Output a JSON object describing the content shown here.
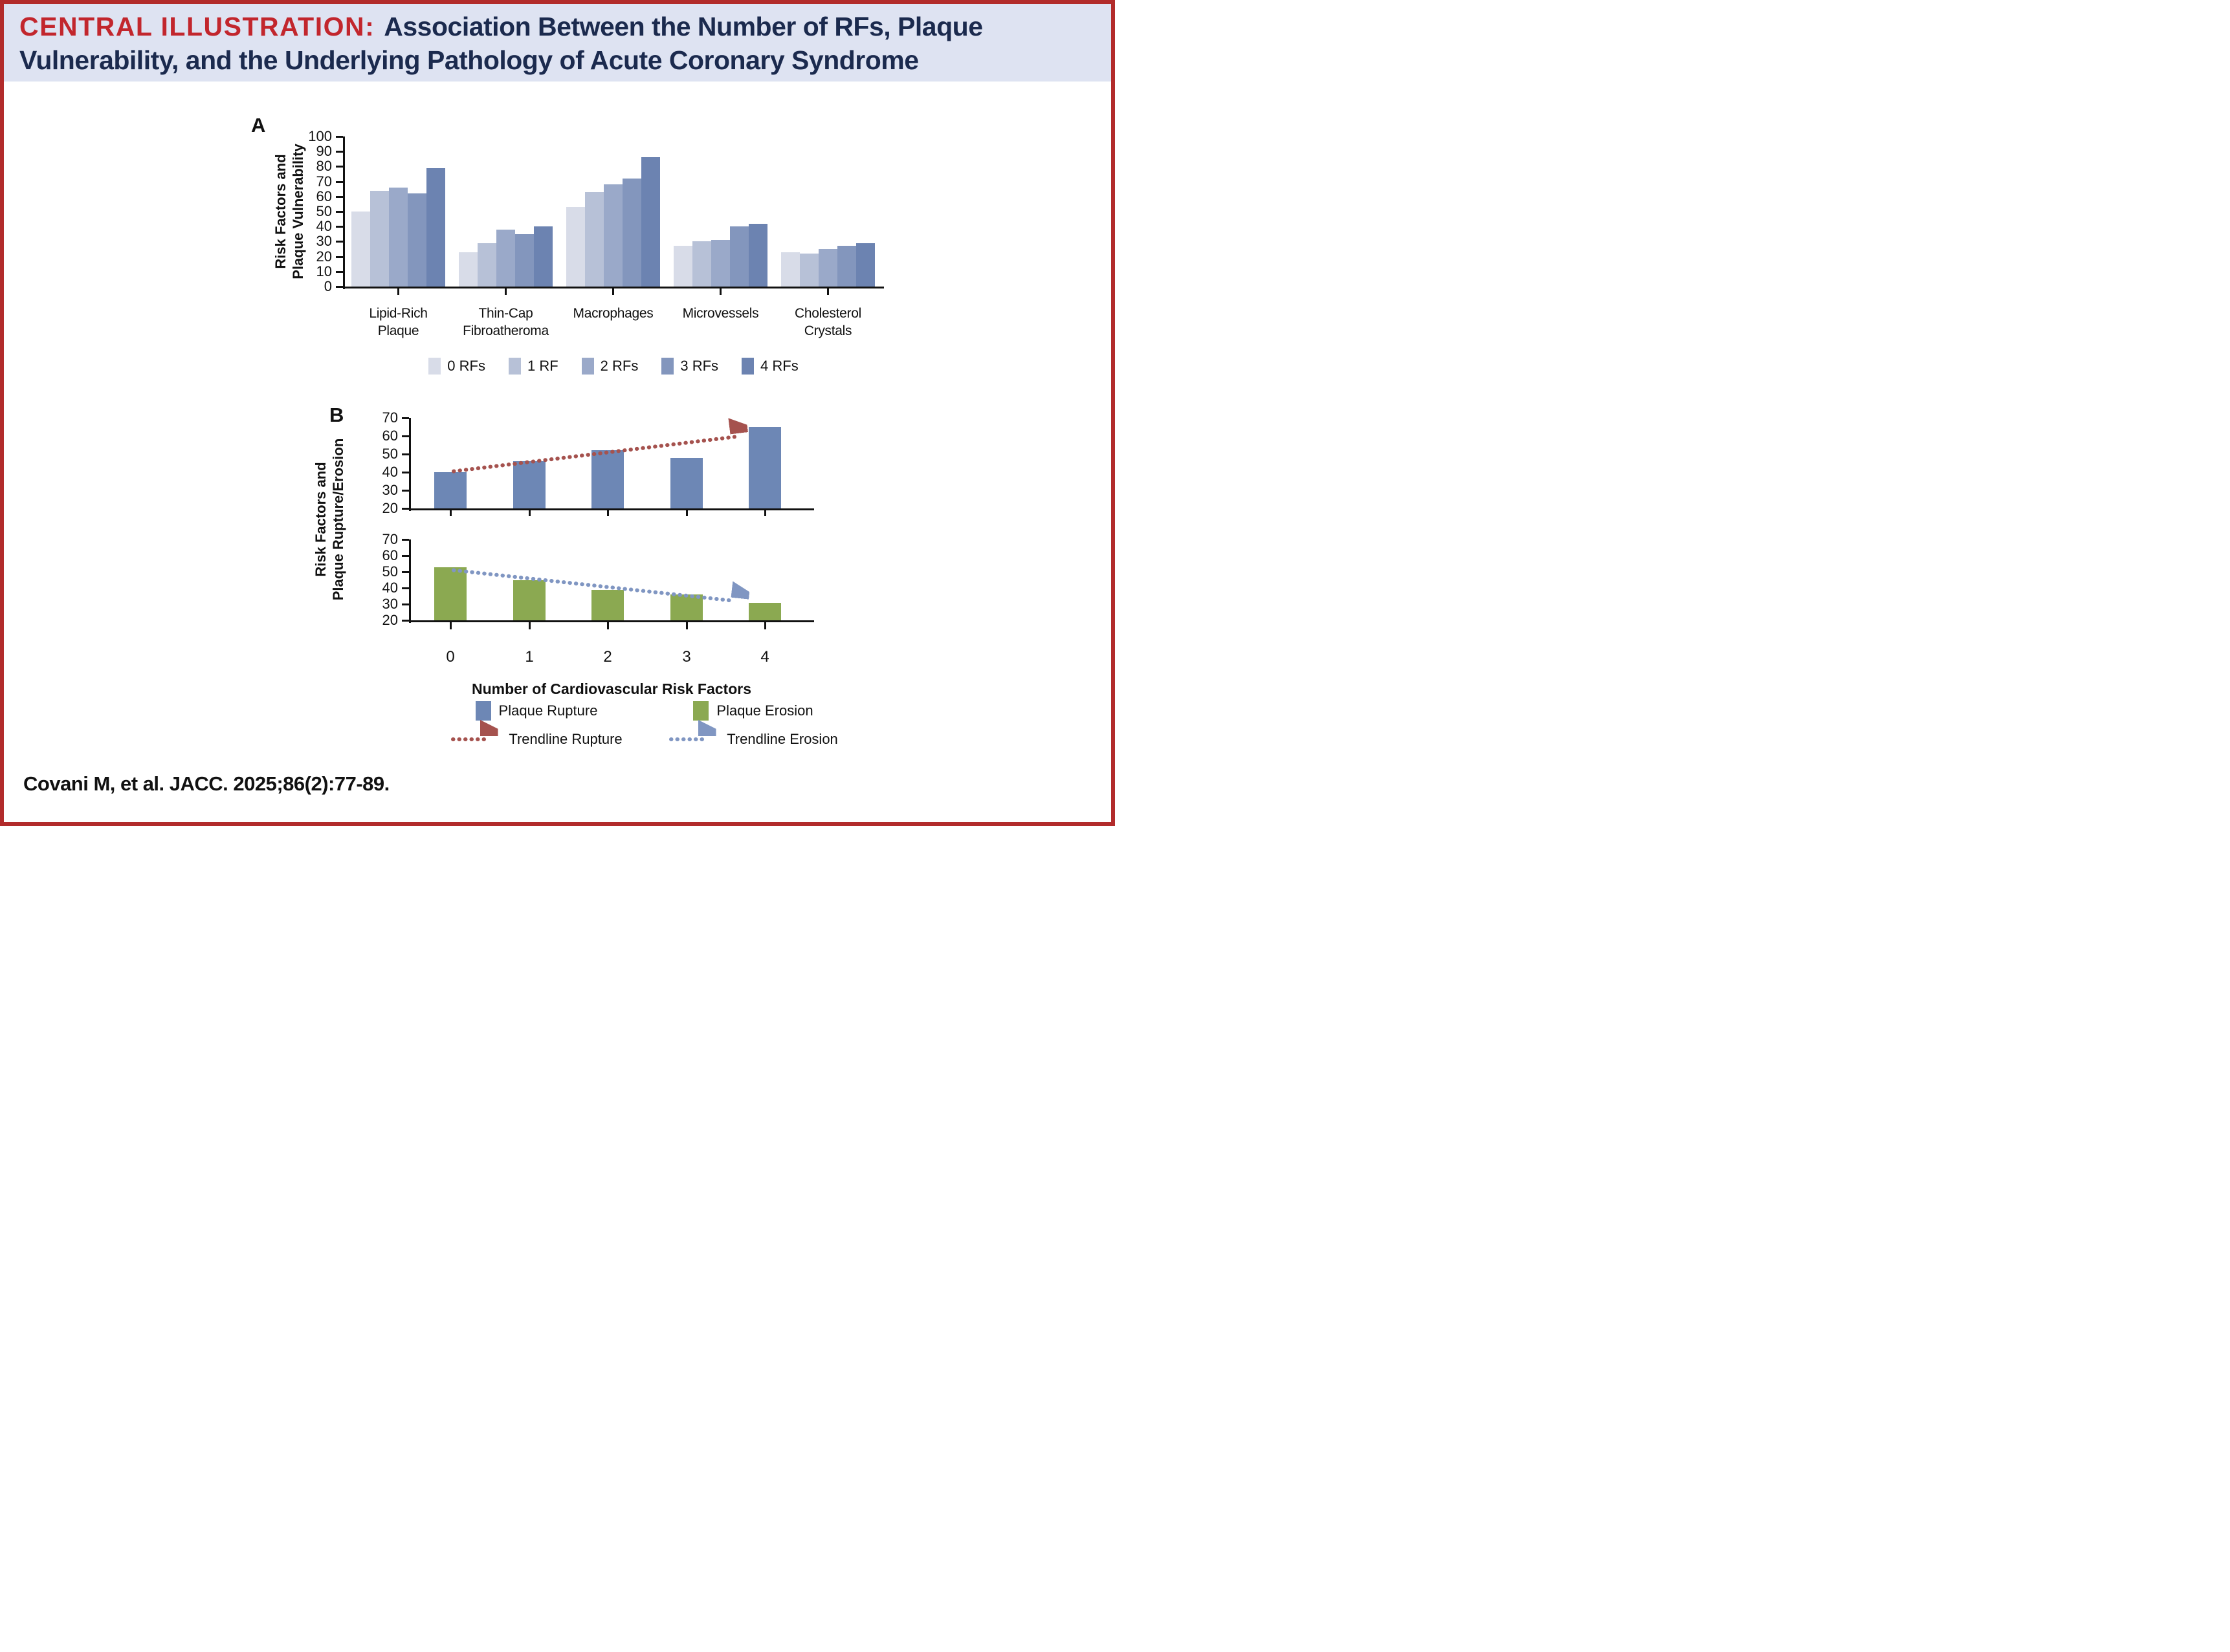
{
  "header": {
    "label": "CENTRAL ILLUSTRATION:",
    "title_line1_rest": "Association Between the Number of RFs, Plaque",
    "title_line2": "Vulnerability, and the Underlying Pathology of Acute Coronary Syndrome"
  },
  "colors": {
    "border": "#B22B2B",
    "header_bg": "#DEE3F2",
    "title_red": "#C2262D",
    "title_navy": "#1B2A4E",
    "axis": "#111111"
  },
  "chart_data": [
    {
      "id": "panel-a",
      "type": "bar",
      "panel_label": "A",
      "ylabel_lines": [
        "Risk Factors and",
        "Plaque Vulnerability"
      ],
      "ylim": [
        0,
        100
      ],
      "yticks": [
        0,
        10,
        20,
        30,
        40,
        50,
        60,
        70,
        80,
        90,
        100
      ],
      "grid": false,
      "legend_position": "bottom",
      "categories": [
        "Lipid-Rich Plaque",
        "Thin-Cap Fibroatheroma",
        "Macrophages",
        "Microvessels",
        "Cholesterol Crystals"
      ],
      "category_label_lines": [
        [
          "Lipid-Rich",
          "Plaque"
        ],
        [
          "Thin-Cap",
          "Fibroatheroma"
        ],
        [
          "Macrophages"
        ],
        [
          "Microvessels"
        ],
        [
          "Cholesterol",
          "Crystals"
        ]
      ],
      "series": [
        {
          "name": "0 RFs",
          "color": "#D8DCE8",
          "values": [
            50,
            23,
            53,
            27,
            23
          ]
        },
        {
          "name": "1 RF",
          "color": "#B7C1D7",
          "values": [
            64,
            29,
            63,
            30,
            22
          ]
        },
        {
          "name": "2 RFs",
          "color": "#9AA9C9",
          "values": [
            66,
            38,
            68,
            31,
            25
          ]
        },
        {
          "name": "3 RFs",
          "color": "#8396BD",
          "values": [
            62,
            35,
            72,
            40,
            27
          ]
        },
        {
          "name": "4 RFs",
          "color": "#6C83B1",
          "values": [
            79,
            40,
            86,
            42,
            29
          ]
        }
      ]
    },
    {
      "id": "panel-b",
      "type": "bar",
      "panel_label": "B",
      "ylabel_lines": [
        "Risk Factors and",
        "Plaque Rupture/Erosion"
      ],
      "xlabel": "Number of Cardiovascular Risk Factors",
      "x": [
        "0",
        "1",
        "2",
        "3",
        "4"
      ],
      "ylim": [
        20,
        70
      ],
      "yticks": [
        20,
        30,
        40,
        50,
        60,
        70
      ],
      "grid": false,
      "legend_position": "bottom",
      "subcharts": [
        {
          "name": "Plaque Rupture",
          "color": "#6D87B5",
          "values": [
            40,
            46,
            52,
            48,
            65
          ],
          "trendline": {
            "name": "Trendline Rupture",
            "color": "#A5524E",
            "start_value": 40.5,
            "end_value": 59.5
          }
        },
        {
          "name": "Plaque Erosion",
          "color": "#8BA951",
          "values": [
            53,
            45,
            39,
            36,
            31
          ],
          "trendline": {
            "name": "Trendline Erosion",
            "color": "#8096C2",
            "start_value": 51,
            "end_value": 32
          }
        }
      ]
    }
  ],
  "citation": "Covani M, et al. JACC. 2025;86(2):77-89."
}
